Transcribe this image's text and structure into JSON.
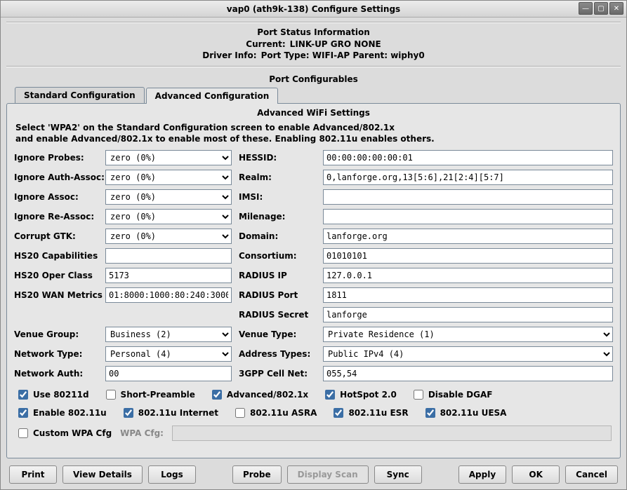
{
  "window": {
    "title": "vap0  (ath9k-138) Configure Settings"
  },
  "port_status": {
    "header": "Port Status Information",
    "current_label": "Current:",
    "current_value": "LINK-UP GRO  NONE",
    "driver_label": "Driver Info:",
    "driver_value": "Port Type: WIFI-AP   Parent: wiphy0"
  },
  "port_config_header": "Port Configurables",
  "tabs": {
    "standard": "Standard Configuration",
    "advanced": "Advanced Configuration",
    "active": "advanced"
  },
  "panel": {
    "title": "Advanced WiFi Settings",
    "instructions_line1": "Select 'WPA2' on the Standard Configuration screen to enable Advanced/802.1x",
    "instructions_line2": "and enable Advanced/802.1x to enable most of these. Enabling 802.11u enables others."
  },
  "left_labels": {
    "ignore_probes": "Ignore Probes:",
    "ignore_auth_assoc": "Ignore Auth-Assoc:",
    "ignore_assoc": "Ignore Assoc:",
    "ignore_re_assoc": "Ignore Re-Assoc:",
    "corrupt_gtk": "Corrupt GTK:",
    "hs20_cap": "HS20 Capabilities",
    "hs20_oper": "HS20 Oper Class",
    "hs20_wan": "HS20 WAN Metrics",
    "venue_group": "Venue Group:",
    "network_type": "Network Type:",
    "network_auth": "Network Auth:"
  },
  "right_labels": {
    "hessid": "HESSID:",
    "realm": "Realm:",
    "imsi": "IMSI:",
    "milenage": "Milenage:",
    "domain": "Domain:",
    "consortium": "Consortium:",
    "radius_ip": "RADIUS IP",
    "radius_port": "RADIUS Port",
    "radius_secret": "RADIUS Secret",
    "venue_type": "Venue Type:",
    "address_types": "Address Types:",
    "gpp": "3GPP Cell Net:"
  },
  "values": {
    "zero_pct": "zero (0%)",
    "hs20_cap": "",
    "hs20_oper": "5173",
    "hs20_wan": "01:8000:1000:80:240:3000",
    "venue_group": "Business (2)",
    "network_type": "Personal (4)",
    "network_auth": "00",
    "hessid": "00:00:00:00:00:01",
    "realm": "0,lanforge.org,13[5:6],21[2:4][5:7]",
    "imsi": "",
    "milenage": "",
    "domain": "lanforge.org",
    "consortium": "01010101",
    "radius_ip": "127.0.0.1",
    "radius_port": "1811",
    "radius_secret": "lanforge",
    "venue_type": "Private Residence (1)",
    "address_types": "Public IPv4 (4)",
    "gpp": "055,54"
  },
  "checkboxes": {
    "use_80211d": {
      "label": "Use 80211d",
      "checked": true
    },
    "short_preamble": {
      "label": "Short-Preamble",
      "checked": false
    },
    "advanced_8021x": {
      "label": "Advanced/802.1x",
      "checked": true
    },
    "hotspot20": {
      "label": "HotSpot 2.0",
      "checked": true
    },
    "disable_dgaf": {
      "label": "Disable DGAF",
      "checked": false
    },
    "enable_80211u": {
      "label": "Enable 802.11u",
      "checked": true
    },
    "internet": {
      "label": "802.11u Internet",
      "checked": true
    },
    "asra": {
      "label": "802.11u ASRA",
      "checked": false
    },
    "esr": {
      "label": "802.11u ESR",
      "checked": true
    },
    "uesa": {
      "label": "802.11u UESA",
      "checked": true
    },
    "custom_wpa": {
      "label": "Custom WPA Cfg",
      "checked": false
    }
  },
  "wpa_cfg_label": "WPA Cfg:",
  "buttons": {
    "print": "Print",
    "view_details": "View Details",
    "logs": "Logs",
    "probe": "Probe",
    "display_scan": "Display Scan",
    "sync": "Sync",
    "apply": "Apply",
    "ok": "OK",
    "cancel": "Cancel"
  },
  "colors": {
    "window_bg": "#dcdcdc",
    "panel_bg": "#e6e6e6",
    "border": "#7a8a99",
    "accent": "#3b6ea5"
  }
}
